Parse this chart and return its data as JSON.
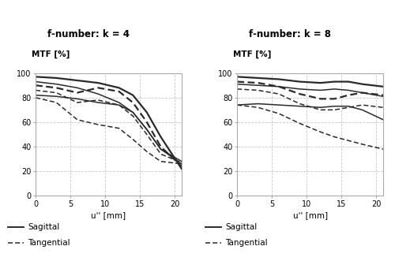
{
  "title_left": "f-number: k = 4",
  "title_right": "f-number: k = 8",
  "ylabel": "MTF [%]",
  "xlabel": "u'' [mm]",
  "xlim": [
    0,
    21
  ],
  "ylim": [
    0,
    100
  ],
  "xticks": [
    0,
    5,
    10,
    15,
    20
  ],
  "yticks": [
    0,
    20,
    40,
    60,
    80,
    100
  ],
  "background": "#ffffff",
  "grid_color": "#c8c8c8",
  "line_color": "#2a2a2a",
  "k4_sagittal": [
    [
      0,
      97
    ],
    [
      3,
      96
    ],
    [
      6,
      94
    ],
    [
      9,
      92
    ],
    [
      12,
      88
    ],
    [
      14,
      82
    ],
    [
      16,
      68
    ],
    [
      18,
      48
    ],
    [
      21,
      22
    ]
  ],
  "k4_sagittal2": [
    [
      0,
      93
    ],
    [
      3,
      91
    ],
    [
      6,
      88
    ],
    [
      9,
      83
    ],
    [
      12,
      76
    ],
    [
      14,
      68
    ],
    [
      16,
      54
    ],
    [
      18,
      38
    ],
    [
      21,
      26
    ]
  ],
  "k4_sagittal3": [
    [
      0,
      82
    ],
    [
      3,
      81
    ],
    [
      6,
      79
    ],
    [
      9,
      76
    ],
    [
      12,
      74
    ],
    [
      14,
      68
    ],
    [
      16,
      54
    ],
    [
      18,
      38
    ],
    [
      21,
      28
    ]
  ],
  "k4_tangential": [
    [
      0,
      90
    ],
    [
      3,
      88
    ],
    [
      6,
      84
    ],
    [
      9,
      88
    ],
    [
      12,
      85
    ],
    [
      14,
      76
    ],
    [
      16,
      60
    ],
    [
      18,
      40
    ],
    [
      21,
      24
    ]
  ],
  "k4_tangential2": [
    [
      0,
      86
    ],
    [
      3,
      84
    ],
    [
      6,
      76
    ],
    [
      9,
      78
    ],
    [
      12,
      74
    ],
    [
      14,
      65
    ],
    [
      16,
      50
    ],
    [
      18,
      34
    ],
    [
      21,
      27
    ]
  ],
  "k4_tangential3": [
    [
      0,
      80
    ],
    [
      3,
      76
    ],
    [
      6,
      62
    ],
    [
      9,
      58
    ],
    [
      12,
      55
    ],
    [
      14,
      46
    ],
    [
      16,
      36
    ],
    [
      18,
      28
    ],
    [
      21,
      26
    ]
  ],
  "k8_sagittal": [
    [
      0,
      97
    ],
    [
      3,
      96
    ],
    [
      6,
      95
    ],
    [
      9,
      93
    ],
    [
      12,
      92
    ],
    [
      14,
      93
    ],
    [
      16,
      93
    ],
    [
      18,
      91
    ],
    [
      21,
      89
    ]
  ],
  "k8_sagittal2": [
    [
      0,
      91
    ],
    [
      3,
      90
    ],
    [
      6,
      89
    ],
    [
      9,
      87
    ],
    [
      12,
      86
    ],
    [
      14,
      87
    ],
    [
      16,
      86
    ],
    [
      18,
      84
    ],
    [
      21,
      81
    ]
  ],
  "k8_sagittal3": [
    [
      0,
      74
    ],
    [
      3,
      75
    ],
    [
      6,
      74
    ],
    [
      9,
      73
    ],
    [
      12,
      72
    ],
    [
      14,
      73
    ],
    [
      16,
      73
    ],
    [
      18,
      70
    ],
    [
      21,
      62
    ]
  ],
  "k8_tangential": [
    [
      0,
      93
    ],
    [
      3,
      92
    ],
    [
      6,
      89
    ],
    [
      9,
      83
    ],
    [
      12,
      79
    ],
    [
      14,
      79
    ],
    [
      16,
      82
    ],
    [
      18,
      84
    ],
    [
      21,
      82
    ]
  ],
  "k8_tangential2": [
    [
      0,
      87
    ],
    [
      3,
      86
    ],
    [
      6,
      83
    ],
    [
      9,
      75
    ],
    [
      12,
      70
    ],
    [
      14,
      70
    ],
    [
      16,
      72
    ],
    [
      18,
      74
    ],
    [
      21,
      72
    ]
  ],
  "k8_tangential3": [
    [
      0,
      74
    ],
    [
      3,
      72
    ],
    [
      6,
      67
    ],
    [
      9,
      59
    ],
    [
      12,
      52
    ],
    [
      14,
      48
    ],
    [
      16,
      45
    ],
    [
      18,
      42
    ],
    [
      21,
      38
    ]
  ]
}
